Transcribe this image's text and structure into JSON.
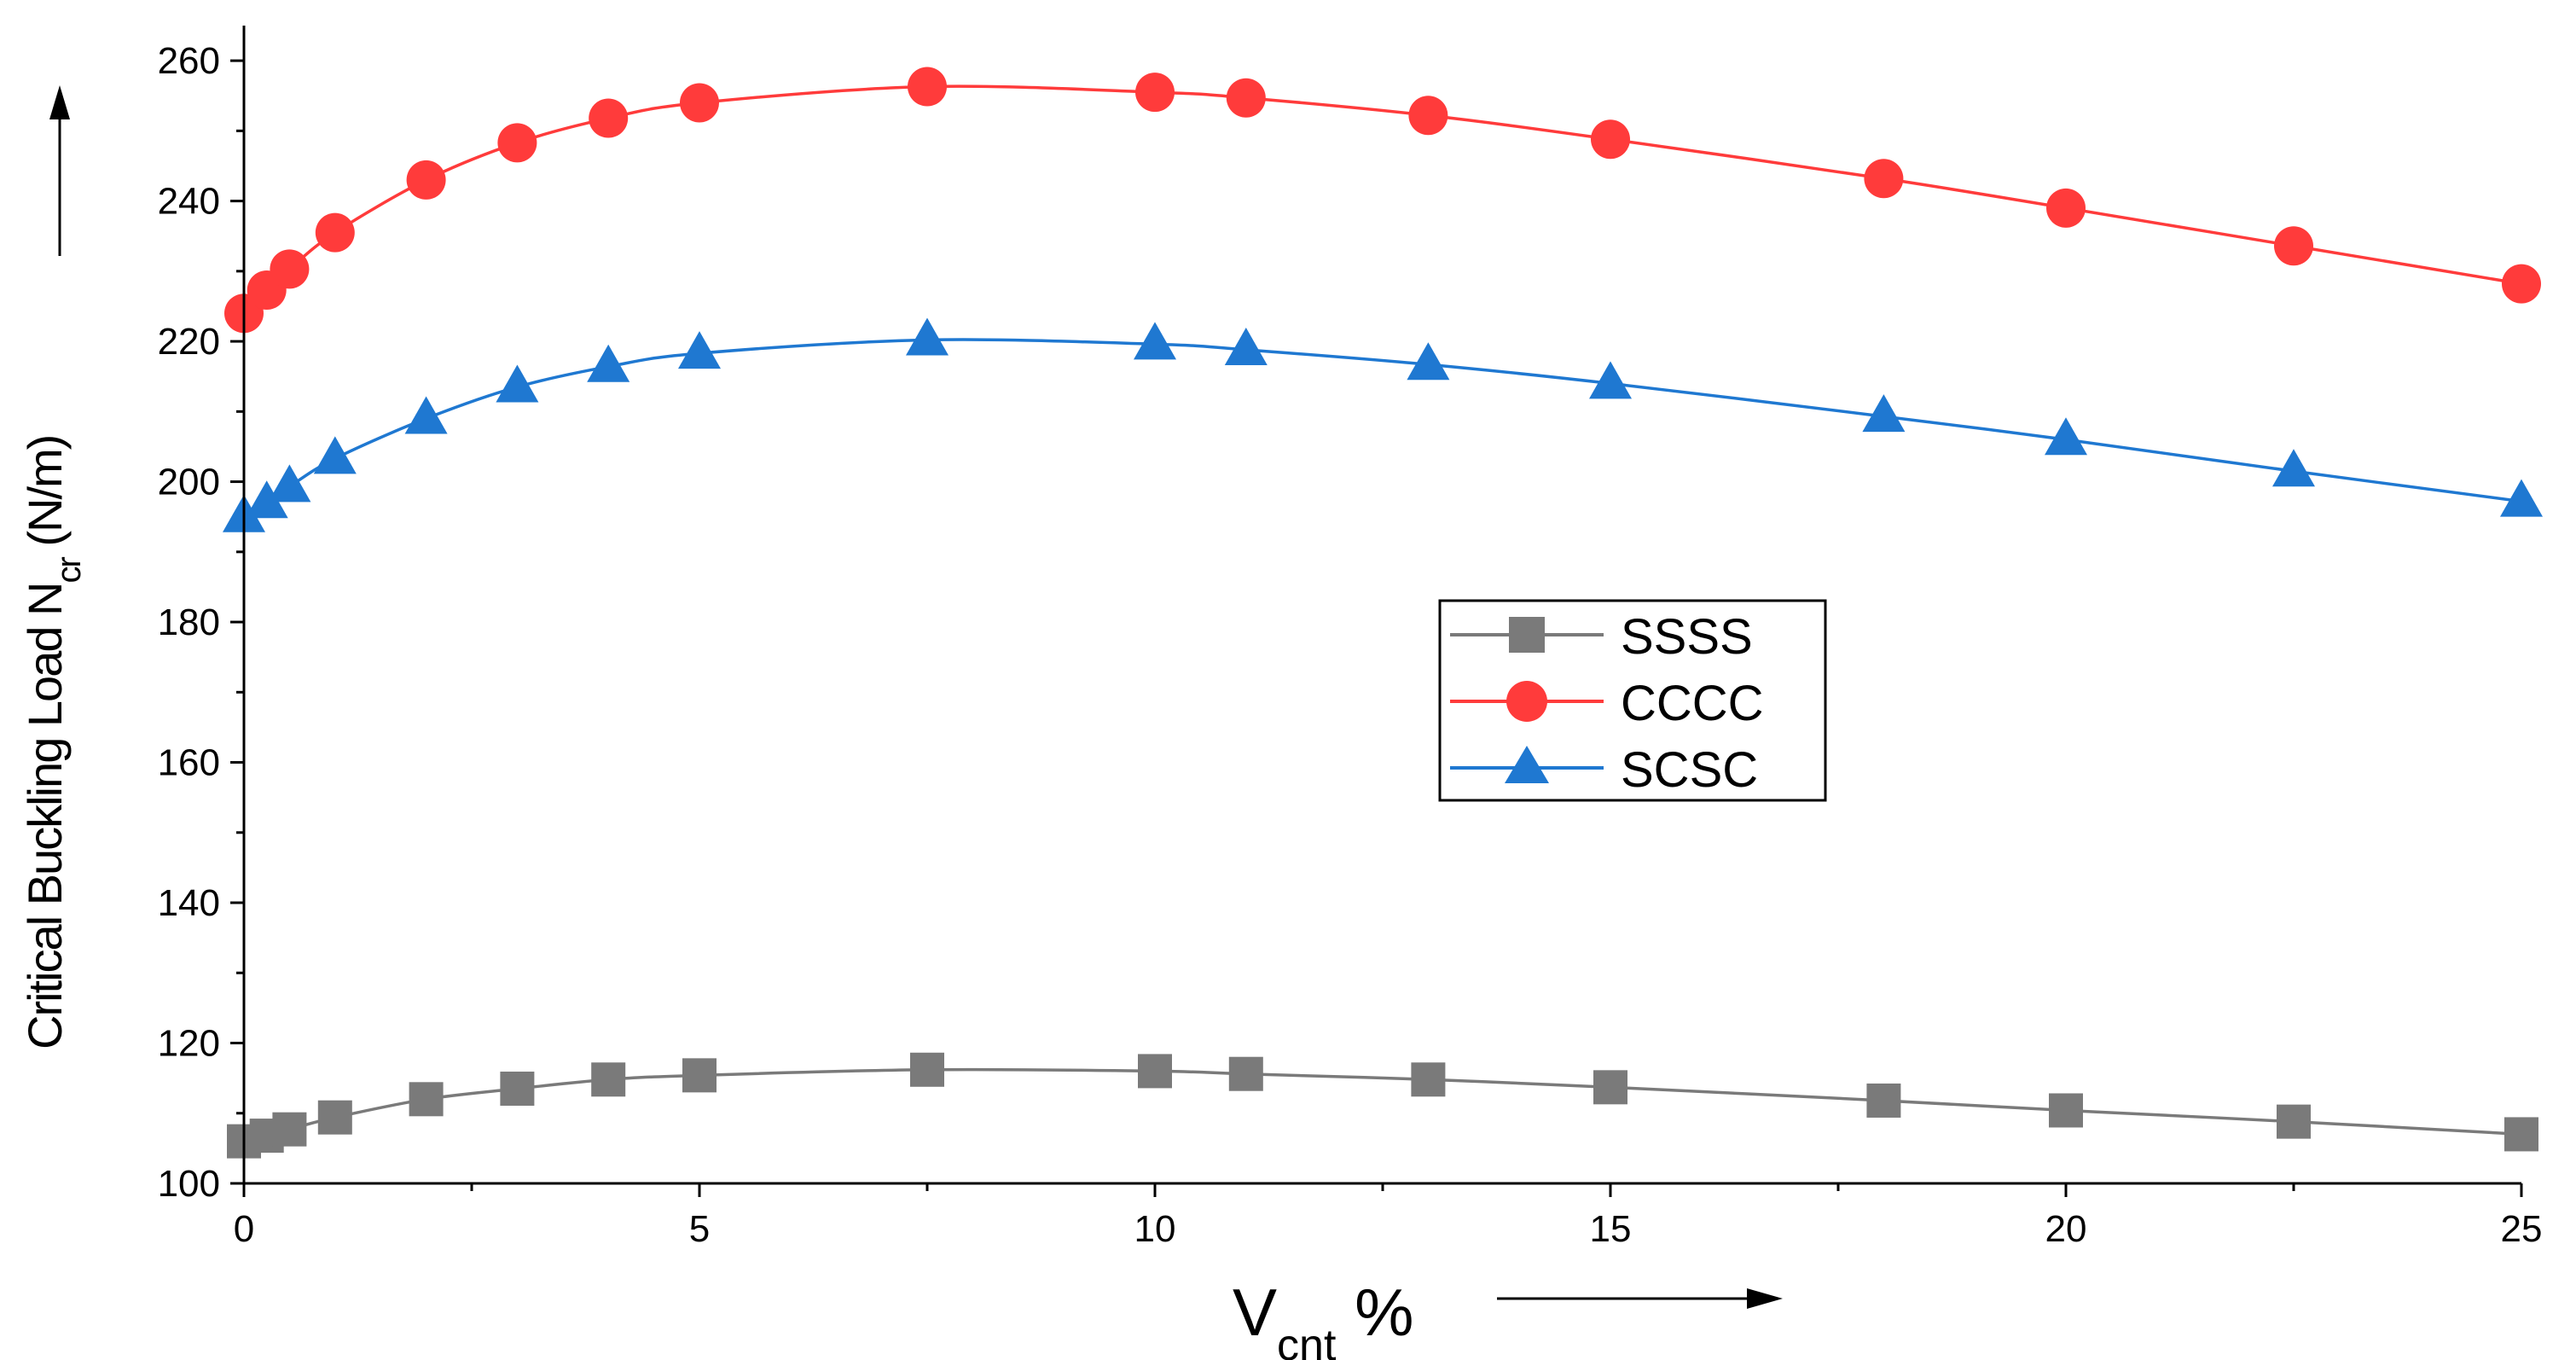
{
  "chart_data": {
    "type": "line",
    "xlabel_main": "V",
    "xlabel_sub": "cnt",
    "xlabel_suffix": " %",
    "ylabel_main": "Critical Buckling Load N",
    "ylabel_sub": "cr",
    "ylabel_suffix": " (N/m)",
    "xlim": [
      0,
      25
    ],
    "ylim": [
      100,
      265
    ],
    "xticks": [
      0,
      5,
      10,
      15,
      20,
      25
    ],
    "yticks": [
      100,
      120,
      140,
      160,
      180,
      200,
      220,
      240,
      260
    ],
    "x": [
      0,
      0.25,
      0.5,
      1,
      2,
      3,
      4,
      5,
      7.5,
      10,
      11,
      13,
      15,
      18,
      20,
      22.5,
      25
    ],
    "series": [
      {
        "name": "SSSS",
        "color": "#7a7a7a",
        "marker": "square",
        "values": [
          106.0,
          106.8,
          107.7,
          109.4,
          112.0,
          113.5,
          114.8,
          115.4,
          116.2,
          116.0,
          115.6,
          114.8,
          113.7,
          111.8,
          110.4,
          108.8,
          107.0
        ]
      },
      {
        "name": "CCCC",
        "color": "#ff3b3b",
        "marker": "circle",
        "values": [
          224.0,
          227.3,
          230.3,
          235.5,
          243.0,
          248.3,
          251.8,
          254.0,
          256.3,
          255.5,
          254.7,
          252.2,
          248.8,
          243.2,
          239.0,
          233.6,
          228.2
        ]
      },
      {
        "name": "SCSC",
        "color": "#1f78d1",
        "marker": "triangle",
        "values": [
          195.0,
          197.0,
          199.3,
          203.3,
          209.0,
          213.5,
          216.4,
          218.3,
          220.2,
          219.6,
          218.8,
          216.7,
          214.0,
          209.3,
          206.0,
          201.5,
          197.2
        ]
      }
    ],
    "legend_position": "center-right"
  }
}
